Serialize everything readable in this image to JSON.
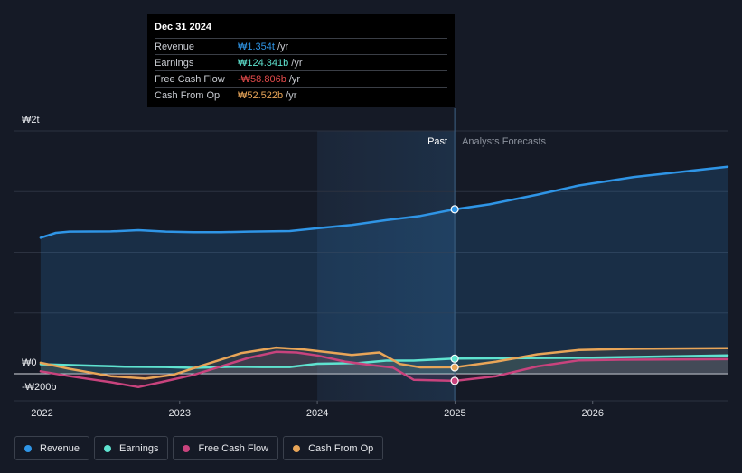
{
  "colors": {
    "revenue": "#2f95e6",
    "earnings": "#5fe3d0",
    "free_cash_flow": "#c8437d",
    "cash_from_op": "#e8a558",
    "negative_value": "#e54b4b"
  },
  "tooltip": {
    "date": "Dec 31 2024",
    "rows": [
      {
        "label": "Revenue",
        "value": "₩1.354t",
        "unit": "/yr",
        "color": "#2f95e6"
      },
      {
        "label": "Earnings",
        "value": "₩124.341b",
        "unit": "/yr",
        "color": "#5fe3d0"
      },
      {
        "label": "Free Cash Flow",
        "value": "-₩58.806b",
        "unit": "/yr",
        "color": "#e54b4b"
      },
      {
        "label": "Cash From Op",
        "value": "₩52.522b",
        "unit": "/yr",
        "color": "#e8a558"
      }
    ]
  },
  "legend": [
    {
      "label": "Revenue",
      "color": "#2f95e6"
    },
    {
      "label": "Earnings",
      "color": "#5fe3d0"
    },
    {
      "label": "Free Cash Flow",
      "color": "#c8437d"
    },
    {
      "label": "Cash From Op",
      "color": "#e8a558"
    }
  ],
  "chart_data": {
    "type": "line",
    "title": "",
    "xlabel": "",
    "ylabel": "",
    "units": "KRW",
    "y_axis_labels": [
      "₩2t",
      "₩0",
      "-₩200b"
    ],
    "x_tick_labels": [
      "2022",
      "2023",
      "2024",
      "2025",
      "2026"
    ],
    "x_ticks": [
      2022,
      2023,
      2024,
      2025,
      2026
    ],
    "xlim": [
      2021.8,
      2026.98
    ],
    "ylim": [
      -200,
      2000
    ],
    "region_labels": {
      "past": "Past",
      "forecast": "Analysts Forecasts"
    },
    "past_end": 2024.998,
    "highlight_start": 2024.0,
    "series": [
      {
        "name": "Revenue",
        "key": "revenue",
        "points": [
          [
            2021.99,
            1120
          ],
          [
            2022.1,
            1160
          ],
          [
            2022.2,
            1170
          ],
          [
            2022.5,
            1172
          ],
          [
            2022.7,
            1182
          ],
          [
            2022.9,
            1170
          ],
          [
            2023.1,
            1165
          ],
          [
            2023.3,
            1165
          ],
          [
            2023.5,
            1170
          ],
          [
            2023.8,
            1175
          ],
          [
            2024.0,
            1198
          ],
          [
            2024.25,
            1225
          ],
          [
            2024.5,
            1265
          ],
          [
            2024.75,
            1300
          ],
          [
            2024.998,
            1354
          ],
          [
            2025.25,
            1395
          ],
          [
            2025.6,
            1475
          ],
          [
            2025.9,
            1550
          ],
          [
            2026.3,
            1620
          ],
          [
            2026.98,
            1705
          ]
        ]
      },
      {
        "name": "Earnings",
        "key": "earnings",
        "points": [
          [
            2021.99,
            78
          ],
          [
            2022.3,
            68
          ],
          [
            2022.6,
            58
          ],
          [
            2022.9,
            55
          ],
          [
            2023.1,
            48
          ],
          [
            2023.4,
            58
          ],
          [
            2023.6,
            55
          ],
          [
            2023.8,
            55
          ],
          [
            2024.0,
            82
          ],
          [
            2024.3,
            88
          ],
          [
            2024.5,
            108
          ],
          [
            2024.7,
            108
          ],
          [
            2024.998,
            124
          ],
          [
            2025.5,
            128
          ],
          [
            2026.0,
            132
          ],
          [
            2026.98,
            150
          ]
        ]
      },
      {
        "name": "Free Cash Flow",
        "key": "free_cash_flow",
        "points": [
          [
            2021.99,
            20
          ],
          [
            2022.2,
            -20
          ],
          [
            2022.5,
            -70
          ],
          [
            2022.7,
            -110
          ],
          [
            2022.9,
            -60
          ],
          [
            2023.1,
            -10
          ],
          [
            2023.3,
            60
          ],
          [
            2023.5,
            130
          ],
          [
            2023.7,
            180
          ],
          [
            2023.85,
            175
          ],
          [
            2024.0,
            150
          ],
          [
            2024.2,
            100
          ],
          [
            2024.4,
            70
          ],
          [
            2024.55,
            50
          ],
          [
            2024.7,
            -50
          ],
          [
            2024.998,
            -58.8
          ],
          [
            2025.3,
            -20
          ],
          [
            2025.6,
            60
          ],
          [
            2025.9,
            110
          ],
          [
            2026.2,
            115
          ],
          [
            2026.98,
            120
          ]
        ]
      },
      {
        "name": "Cash From Op",
        "key": "cash_from_op",
        "points": [
          [
            2021.99,
            90
          ],
          [
            2022.2,
            40
          ],
          [
            2022.5,
            -20
          ],
          [
            2022.75,
            -40
          ],
          [
            2022.95,
            -10
          ],
          [
            2023.2,
            80
          ],
          [
            2023.45,
            170
          ],
          [
            2023.7,
            215
          ],
          [
            2023.9,
            200
          ],
          [
            2024.05,
            180
          ],
          [
            2024.25,
            155
          ],
          [
            2024.45,
            175
          ],
          [
            2024.6,
            80
          ],
          [
            2024.75,
            52
          ],
          [
            2024.998,
            52.5
          ],
          [
            2025.3,
            100
          ],
          [
            2025.6,
            160
          ],
          [
            2025.9,
            195
          ],
          [
            2026.3,
            205
          ],
          [
            2026.98,
            210
          ]
        ]
      }
    ]
  }
}
